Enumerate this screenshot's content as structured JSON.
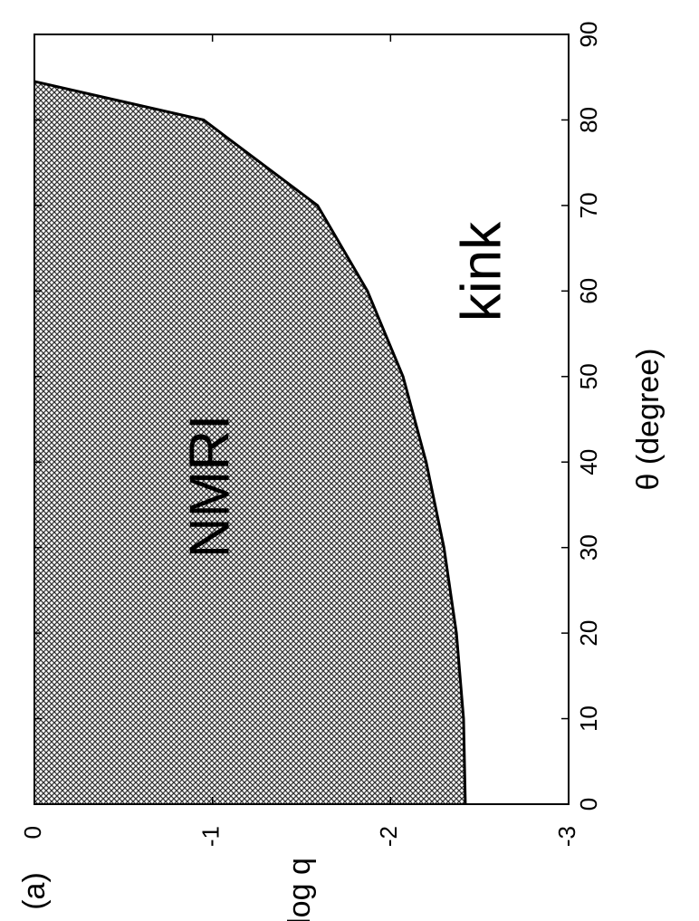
{
  "chart_data": {
    "type": "area",
    "x_label": "θ (degree)",
    "y_label": "log q",
    "annotation": "(a)",
    "region_labels": [
      "NMRI",
      "kink"
    ],
    "x": [
      0,
      10,
      20,
      30,
      40,
      50,
      60,
      70,
      80,
      84.5
    ],
    "series": [
      {
        "name": "NMRI",
        "color": "#000000",
        "values": [
          -2.42,
          -2.41,
          -2.37,
          -2.3,
          -2.2,
          -2.07,
          -1.87,
          -1.59,
          -0.95,
          0
        ]
      }
    ],
    "xlim": [
      0,
      90
    ],
    "xticks": [
      0,
      10,
      20,
      30,
      40,
      50,
      60,
      70,
      80,
      90
    ],
    "ylim": [
      -3,
      0
    ],
    "yticks": [
      -3,
      -2,
      -1,
      0
    ],
    "orientation": "rotated"
  }
}
